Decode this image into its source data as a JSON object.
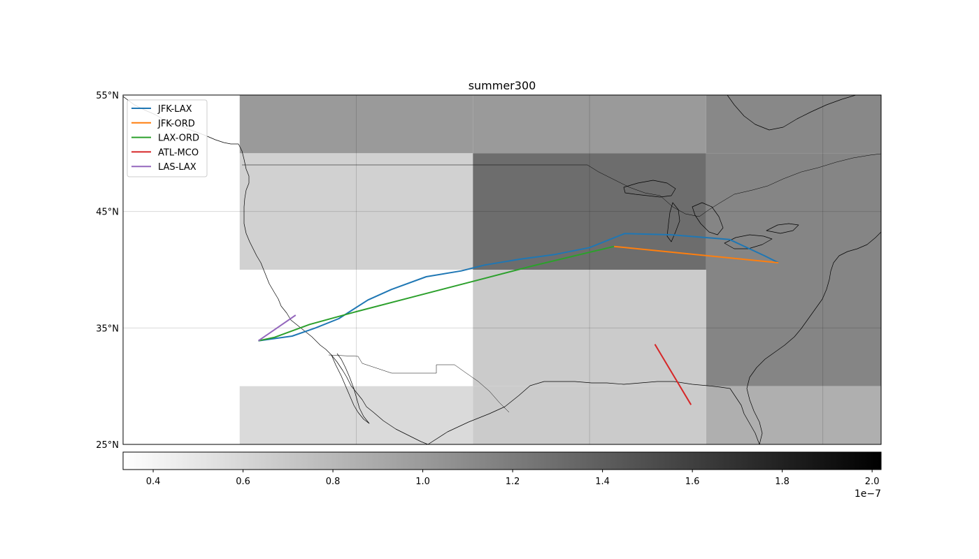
{
  "title": "summer300",
  "map": {
    "lon_range": [
      -130,
      -65
    ],
    "lat_range": [
      25,
      55
    ],
    "lat_ticks": [
      {
        "value": 25,
        "label": "25°N"
      },
      {
        "value": 35,
        "label": "35°N"
      },
      {
        "value": 45,
        "label": "45°N"
      },
      {
        "value": 55,
        "label": "55°N"
      }
    ],
    "gridlines": {
      "lon": [
        -110,
        -90,
        -70
      ],
      "lat": [
        35,
        45
      ]
    },
    "grid_cells": [
      {
        "lon": [
          -120,
          -100
        ],
        "lat": [
          50,
          55
        ],
        "value": 1e-07
      },
      {
        "lon": [
          -100,
          -80
        ],
        "lat": [
          50,
          55
        ],
        "value": 1e-07
      },
      {
        "lon": [
          -80,
          -65
        ],
        "lat": [
          50,
          55
        ],
        "value": 1.12e-07
      },
      {
        "lon": [
          -120,
          -100
        ],
        "lat": [
          40,
          50
        ],
        "value": 6.4e-08
      },
      {
        "lon": [
          -100,
          -80
        ],
        "lat": [
          40,
          50
        ],
        "value": 1.3e-07
      },
      {
        "lon": [
          -80,
          -65
        ],
        "lat": [
          40,
          50
        ],
        "value": 1.14e-07
      },
      {
        "lon": [
          -100,
          -80
        ],
        "lat": [
          30,
          40
        ],
        "value": 6.8e-08
      },
      {
        "lon": [
          -80,
          -65
        ],
        "lat": [
          30,
          40
        ],
        "value": 1.14e-07
      },
      {
        "lon": [
          -120,
          -100
        ],
        "lat": [
          25,
          30
        ],
        "value": 5.8e-08
      },
      {
        "lon": [
          -100,
          -80
        ],
        "lat": [
          25,
          30
        ],
        "value": 6.8e-08
      },
      {
        "lon": [
          -80,
          -65
        ],
        "lat": [
          25,
          30
        ],
        "value": 8.6e-08
      }
    ]
  },
  "legend": {
    "placement": "top-left",
    "entries": [
      {
        "label": "JFK-LAX",
        "color": "#1f77b4"
      },
      {
        "label": "JFK-ORD",
        "color": "#ff7f0e"
      },
      {
        "label": "LAX-ORD",
        "color": "#2ca02c"
      },
      {
        "label": "ATL-MCO",
        "color": "#d62728"
      },
      {
        "label": "LAS-LAX",
        "color": "#9467bd"
      }
    ]
  },
  "routes": [
    {
      "name": "JFK-LAX",
      "color": "#1f77b4",
      "points": [
        [
          -73.8,
          40.6
        ],
        [
          -75,
          41.2
        ],
        [
          -78,
          42.6
        ],
        [
          -83,
          43.0
        ],
        [
          -87,
          43.1
        ],
        [
          -88.5,
          42.5
        ],
        [
          -90,
          41.9
        ],
        [
          -93,
          41.3
        ],
        [
          -96,
          40.9
        ],
        [
          -99,
          40.4
        ],
        [
          -101,
          39.9
        ],
        [
          -104,
          39.4
        ],
        [
          -107,
          38.3
        ],
        [
          -109,
          37.4
        ],
        [
          -111.5,
          35.8
        ],
        [
          -113.5,
          35.0
        ],
        [
          -115.5,
          34.3
        ],
        [
          -118.4,
          33.9
        ]
      ]
    },
    {
      "name": "JFK-ORD",
      "color": "#ff7f0e",
      "points": [
        [
          -87.9,
          42.0
        ],
        [
          -73.8,
          40.6
        ]
      ]
    },
    {
      "name": "LAX-ORD",
      "color": "#2ca02c",
      "points": [
        [
          -118.4,
          33.9
        ],
        [
          -117,
          34.2
        ],
        [
          -114,
          35.3
        ],
        [
          -110,
          36.4
        ],
        [
          -105,
          37.7
        ],
        [
          -100,
          39.0
        ],
        [
          -95,
          40.3
        ],
        [
          -90,
          41.5
        ],
        [
          -87.9,
          42.0
        ]
      ]
    },
    {
      "name": "ATL-MCO",
      "color": "#d62728",
      "points": [
        [
          -84.4,
          33.6
        ],
        [
          -81.3,
          28.4
        ]
      ]
    },
    {
      "name": "LAS-LAX",
      "color": "#9467bd",
      "points": [
        [
          -118.4,
          33.9
        ],
        [
          -115.2,
          36.1
        ]
      ]
    }
  ],
  "colorbar": {
    "min": 3.33e-08,
    "max": 2.02e-07,
    "ticks": [
      {
        "value": 4e-08,
        "label": "0.4"
      },
      {
        "value": 6e-08,
        "label": "0.6"
      },
      {
        "value": 8e-08,
        "label": "0.8"
      },
      {
        "value": 1e-07,
        "label": "1.0"
      },
      {
        "value": 1.2e-07,
        "label": "1.2"
      },
      {
        "value": 1.4e-07,
        "label": "1.4"
      },
      {
        "value": 1.6e-07,
        "label": "1.6"
      },
      {
        "value": 1.8e-07,
        "label": "1.8"
      },
      {
        "value": 2e-07,
        "label": "2.0"
      }
    ],
    "offset_label": "1e−7"
  }
}
